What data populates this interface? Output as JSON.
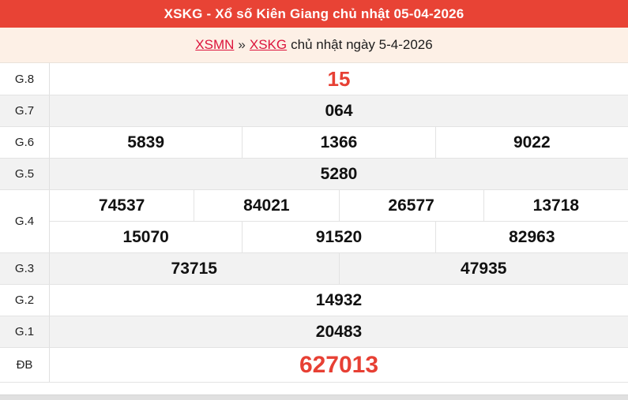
{
  "header": {
    "title": "XSKG - Xổ số Kiên Giang chủ nhật 05-04-2026"
  },
  "breadcrumb": {
    "link_region": "XSMN",
    "separator": "»",
    "link_province": "XSKG",
    "suffix": "chủ nhật ngày 5-4-2026"
  },
  "results": {
    "rows": [
      {
        "label": "G.8",
        "highlight": true,
        "groups": [
          [
            "15"
          ]
        ]
      },
      {
        "label": "G.7",
        "highlight": false,
        "groups": [
          [
            "064"
          ]
        ]
      },
      {
        "label": "G.6",
        "highlight": false,
        "groups": [
          [
            "5839",
            "1366",
            "9022"
          ]
        ]
      },
      {
        "label": "G.5",
        "highlight": false,
        "groups": [
          [
            "5280"
          ]
        ]
      },
      {
        "label": "G.4",
        "highlight": false,
        "groups": [
          [
            "74537",
            "84021",
            "26577",
            "13718"
          ],
          [
            "15070",
            "91520",
            "82963"
          ]
        ]
      },
      {
        "label": "G.3",
        "highlight": false,
        "groups": [
          [
            "73715",
            "47935"
          ]
        ]
      },
      {
        "label": "G.2",
        "highlight": false,
        "groups": [
          [
            "14932"
          ]
        ]
      },
      {
        "label": "G.1",
        "highlight": false,
        "groups": [
          [
            "20483"
          ]
        ]
      },
      {
        "label": "ĐB",
        "highlight": true,
        "groups": [
          [
            "627013"
          ]
        ]
      }
    ]
  },
  "colors": {
    "header_bg": "#e84335",
    "breadcrumb_bg": "#fdf0e6",
    "link_red": "#dc143c",
    "highlight_number_red": "#e74034",
    "shaded_row_bg": "#f2f2f2",
    "border": "#e3e3e3"
  }
}
